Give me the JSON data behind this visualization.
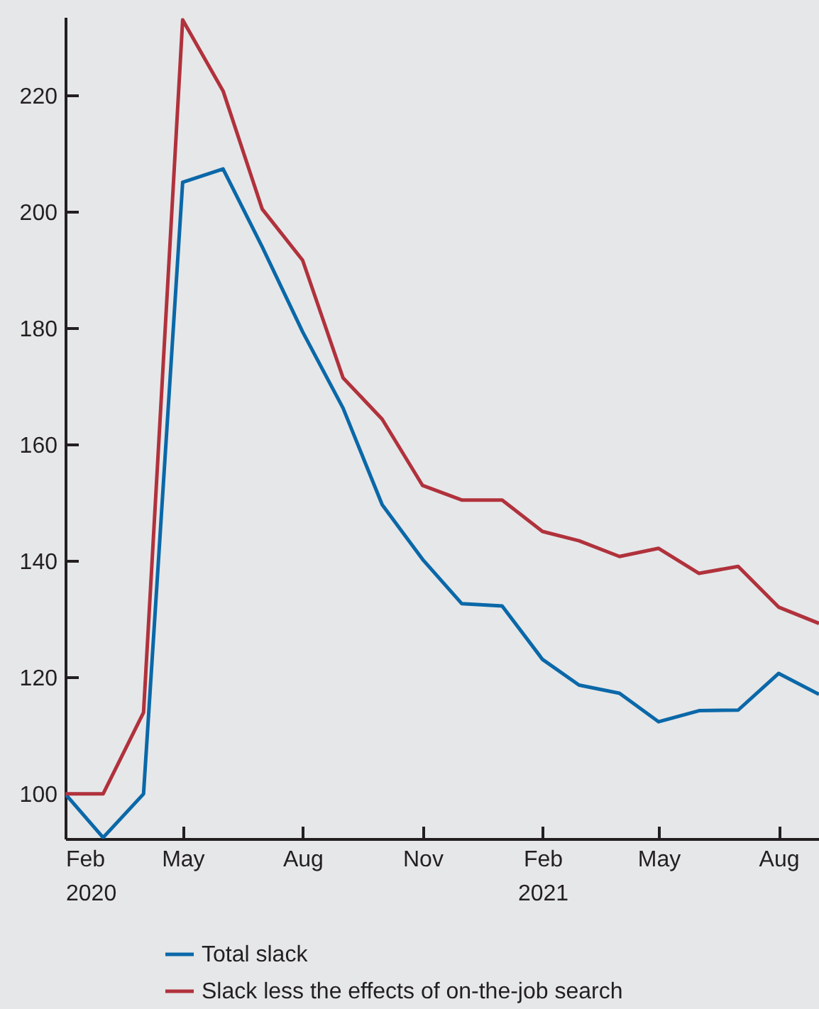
{
  "chart_data": {
    "type": "line",
    "x": [
      "2020-02",
      "2020-03",
      "2020-04",
      "2020-05",
      "2020-06",
      "2020-07",
      "2020-08",
      "2020-09",
      "2020-10",
      "2020-11",
      "2020-12",
      "2021-01",
      "2021-02",
      "2021-03",
      "2021-04",
      "2021-05",
      "2021-06",
      "2021-07",
      "2021-08",
      "2021-09"
    ],
    "series": [
      {
        "name": "Total slack",
        "color": "#0a68a8",
        "values": [
          100,
          92.5,
          100,
          205.1,
          207.4,
          194,
          179.4,
          166.3,
          149.7,
          140.3,
          132.7,
          132.3,
          123.1,
          118.7,
          117.3,
          112.4,
          114.3,
          114.4,
          120.7,
          117.1
        ]
      },
      {
        "name": "Slack less the effects of on-the-job search",
        "color": "#b0323c",
        "values": [
          100,
          100,
          114,
          233,
          220.8,
          200.5,
          191.7,
          171.5,
          164.4,
          153,
          150.5,
          150.5,
          145.1,
          143.5,
          140.8,
          142.2,
          137.9,
          139.1,
          132.1,
          129.3
        ]
      }
    ],
    "xlim": [
      "2020-02",
      "2021-09"
    ],
    "xticks": [
      {
        "value": "2020-02",
        "label": "Feb\n2020"
      },
      {
        "value": "2020-05",
        "label": "May"
      },
      {
        "value": "2020-08",
        "label": "Aug"
      },
      {
        "value": "2020-11",
        "label": "Nov"
      },
      {
        "value": "2021-02",
        "label": "Feb\n2021"
      },
      {
        "value": "2021-05",
        "label": "May"
      },
      {
        "value": "2021-08",
        "label": "Aug"
      }
    ],
    "ylim": [
      92.3,
      233.5
    ],
    "yticks": [
      100,
      120,
      140,
      160,
      180,
      200,
      220
    ],
    "grid": false,
    "legend": "bottom"
  }
}
